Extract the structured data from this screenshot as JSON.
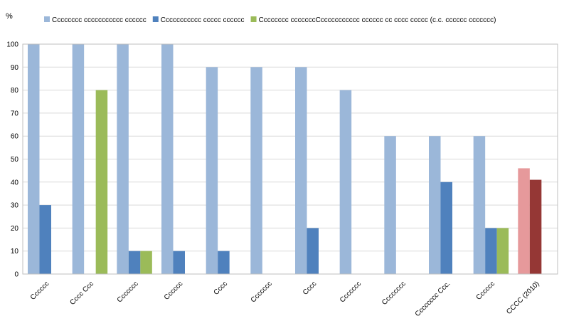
{
  "chart_data": {
    "type": "bar",
    "ylabel": "%",
    "ylim": [
      0,
      100
    ],
    "yticks": [
      0,
      10,
      20,
      30,
      40,
      50,
      60,
      70,
      80,
      90,
      100
    ],
    "grid": true,
    "legend_position": "top",
    "categories": [
      "Cccccc",
      "Cccc Ccc",
      "Ccccccc",
      "Cccccc",
      "Cccc",
      "Ccccccc",
      "Cccc",
      "Ccccccc",
      "Cccccccc",
      "Cccccccc Ccc.",
      "Cccccc",
      "CCCC (2010)"
    ],
    "series": [
      {
        "name": "Cccccccc ccccccccccc cccccc",
        "color": "#9bb7d9",
        "values": [
          100,
          100,
          100,
          100,
          90,
          90,
          90,
          80,
          60,
          60,
          60,
          null
        ]
      },
      {
        "name": "Ccccccccccc ccccc cccccc",
        "color": "#4f81bd",
        "values": [
          30,
          null,
          10,
          10,
          10,
          null,
          20,
          null,
          null,
          40,
          20,
          null
        ]
      },
      {
        "name": "Cccccccc cccccccCccccccccccc cccccc cc cccc ccccc (c.c. cccccc ccccccc)",
        "color": "#9bbb59",
        "values": [
          null,
          80,
          10,
          null,
          null,
          null,
          null,
          null,
          null,
          null,
          20,
          null
        ]
      }
    ],
    "reference": {
      "category": "CCCC (2010)",
      "values": [
        46,
        41
      ],
      "colors": [
        "#e6999b",
        "#953735"
      ]
    }
  }
}
